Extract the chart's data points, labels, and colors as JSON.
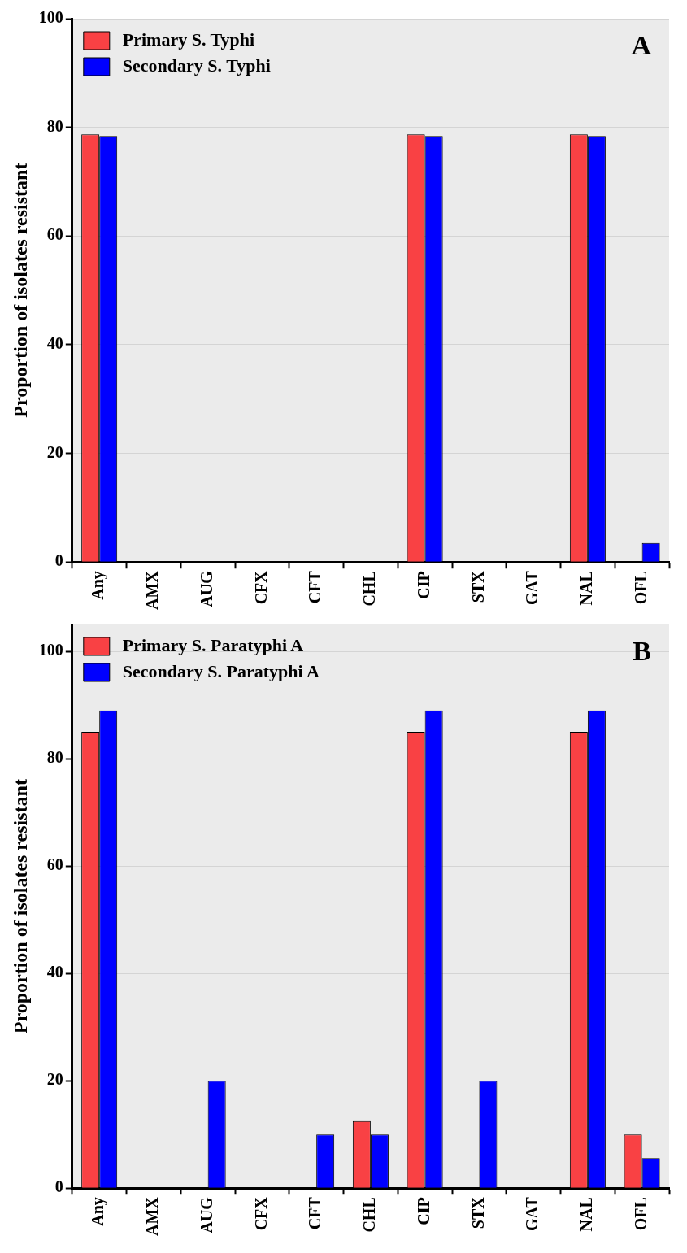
{
  "chart_data": [
    {
      "type": "bar",
      "ylabel": "Proportion of isolates resistant",
      "categories": [
        "Any",
        "AMX",
        "AUG",
        "CFX",
        "CFT",
        "CHL",
        "CIP",
        "STX",
        "GAT",
        "NAL",
        "OFL"
      ],
      "series": [
        {
          "name": "Primary S. Typhi",
          "color": "#f94144",
          "values": [
            78.7,
            0,
            0,
            0,
            0,
            0,
            78.7,
            0,
            0,
            78.7,
            0
          ]
        },
        {
          "name": "Secondary S. Typhi",
          "color": "#0000ff",
          "values": [
            78.4,
            0,
            0,
            0,
            0,
            0,
            78.4,
            0,
            0,
            78.4,
            3.5
          ]
        }
      ],
      "ylim": [
        0,
        100
      ],
      "yticks": [
        0,
        20,
        40,
        60,
        80,
        100
      ],
      "grid": "y",
      "legend": "top left",
      "annotations": [
        "A"
      ]
    },
    {
      "type": "bar",
      "ylabel": "Proportion of isolates resistant",
      "categories": [
        "Any",
        "AMX",
        "AUG",
        "CFX",
        "CFT",
        "CHL",
        "CIP",
        "STX",
        "GAT",
        "NAL",
        "OFL"
      ],
      "series": [
        {
          "name": "Primary S. Paratyphi A",
          "color": "#f94144",
          "values": [
            85,
            0,
            0,
            0,
            0,
            12.5,
            85,
            0,
            0,
            85,
            10
          ]
        },
        {
          "name": "Secondary S. Paratyphi A",
          "color": "#0000ff",
          "values": [
            89,
            0,
            20,
            0,
            10,
            10,
            89,
            20,
            0,
            89,
            5.6
          ]
        }
      ],
      "ylim": [
        0,
        105
      ],
      "yticks": [
        0,
        20,
        40,
        60,
        80,
        100
      ],
      "grid": "y",
      "legend": "top left",
      "annotations": [
        "B"
      ]
    }
  ]
}
